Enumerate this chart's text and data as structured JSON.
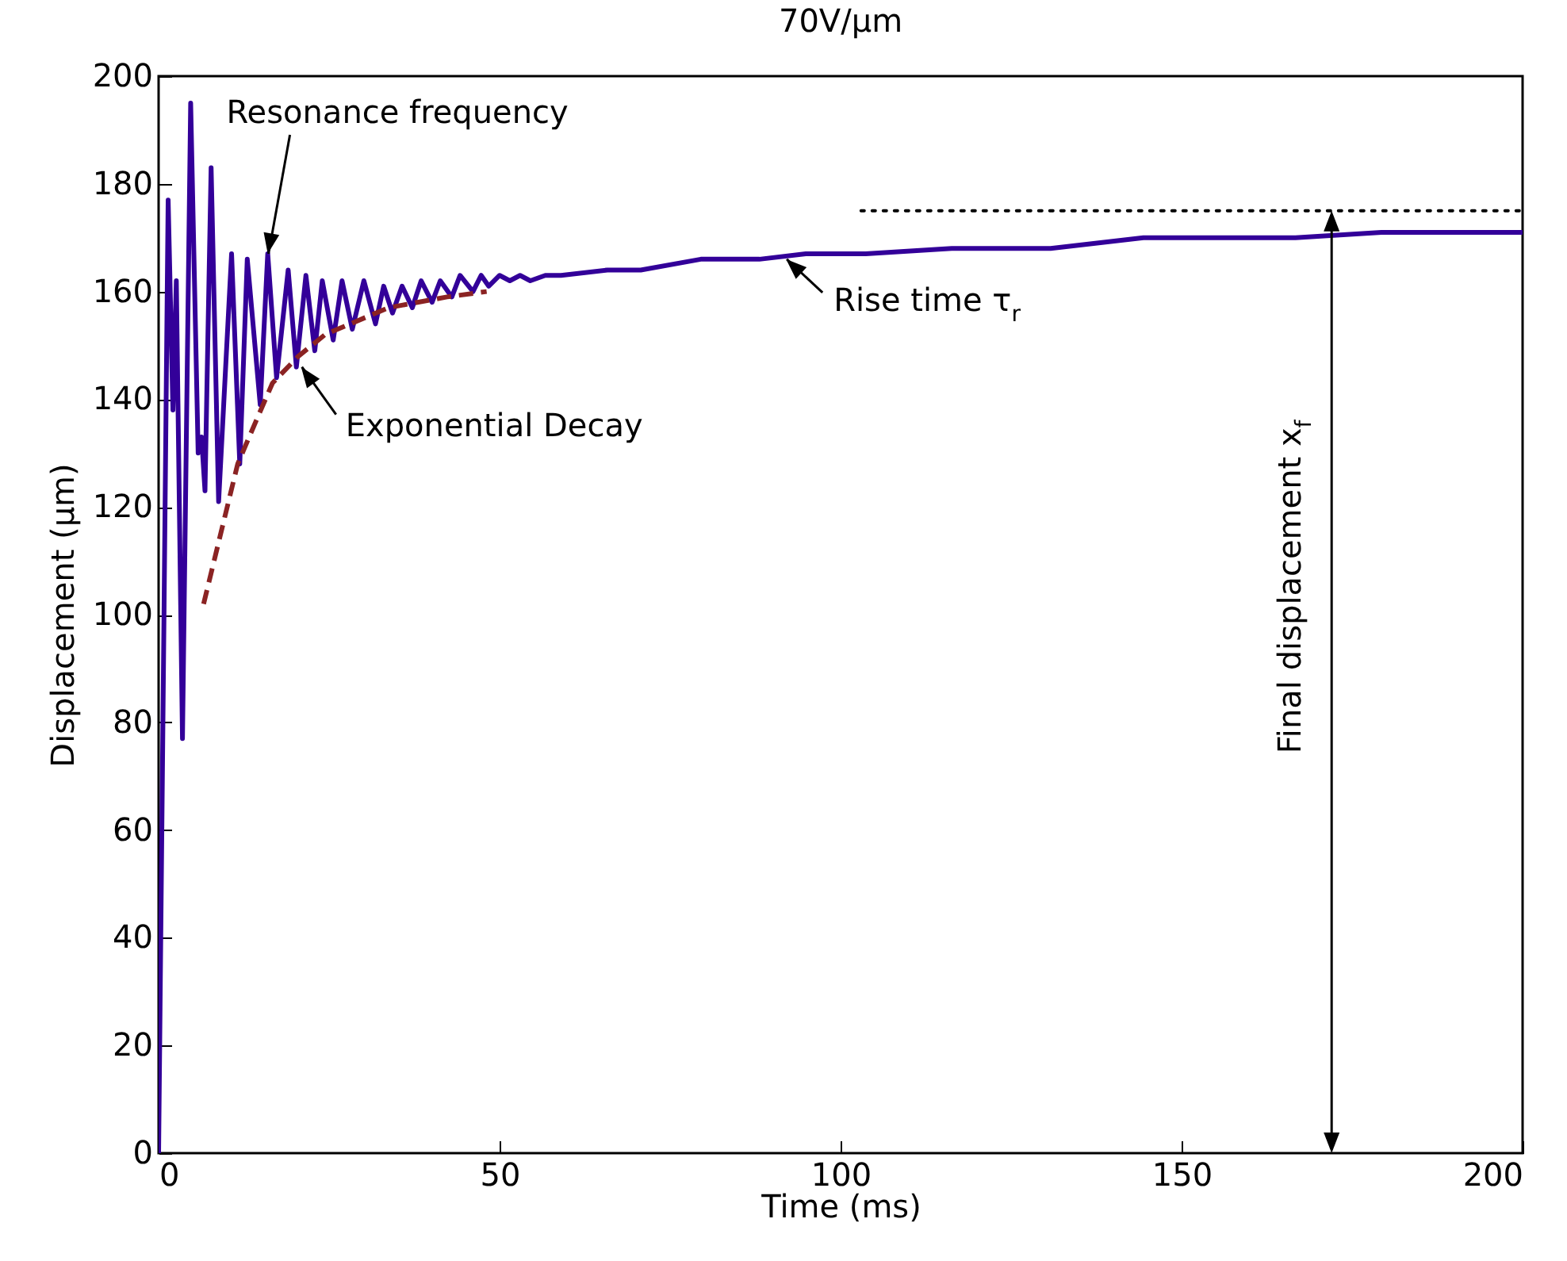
{
  "chart_data": {
    "type": "line",
    "title": "70V/µm",
    "xlabel": "Time (ms)",
    "ylabel": "Displacement (µm)",
    "xlim": [
      0,
      200
    ],
    "xticks": [
      0,
      50,
      100,
      150,
      200
    ],
    "ylim": [
      0,
      200
    ],
    "yticks": [
      0,
      20,
      40,
      60,
      80,
      100,
      120,
      140,
      160,
      180,
      200
    ],
    "grid": false,
    "ref_lines": [
      {
        "axis": "x",
        "value": 172,
        "label": "Final displacement x$_{f}$"
      }
    ],
    "series": [
      {
        "type": "line",
        "color": "#330099",
        "line_style": "solid",
        "x": [
          0,
          1.4,
          2.1,
          2.6,
          3.5,
          4.7,
          5.8,
          6.3,
          6.8,
          7.7,
          8.8,
          10.7,
          11.9,
          13.0,
          14.9,
          16.0,
          17.3,
          19.0,
          20.2,
          21.6,
          22.9,
          24.0,
          25.6,
          26.9,
          28.4,
          30.1,
          31.8,
          33.0,
          34.3,
          35.7,
          37.2,
          38.5,
          40.1,
          41.3,
          43.0,
          44.2,
          46.1,
          47.3,
          48.4,
          50,
          51.5,
          53,
          54.5,
          56.7,
          59,
          65.8,
          70.7,
          79.5,
          88.1,
          94.9,
          103.7,
          116.3,
          130.8,
          144.4,
          166.7,
          179.3,
          182.1,
          200
        ],
        "values": [
          0,
          177,
          138,
          162,
          77,
          195,
          130,
          133,
          123,
          183,
          121,
          167,
          128,
          166,
          139,
          167,
          144,
          164,
          146,
          163,
          149,
          162,
          151,
          162,
          153,
          162,
          154,
          161,
          156,
          161,
          157,
          162,
          158,
          162,
          159,
          163,
          160,
          163,
          161,
          163,
          162,
          163,
          162,
          163,
          163,
          164,
          164,
          166,
          166,
          167,
          167,
          168,
          168,
          170,
          170,
          171,
          171,
          171
        ]
      },
      {
        "type": "line",
        "color": "#8b2323",
        "line_style": "dashed",
        "x": [
          6.6,
          11.6,
          14.3,
          16.7,
          20.5,
          24.4,
          33.7,
          42.3,
          48.1
        ],
        "values": [
          102,
          128,
          136,
          143,
          148,
          152,
          157,
          159,
          160
        ]
      },
      {
        "type": "line",
        "color": "#000000",
        "line_style": "dotted",
        "x": [
          103,
          200
        ],
        "values": [
          175,
          175
        ]
      }
    ],
    "annotations": [
      {
        "text": "Resonance frequency",
        "x": 16,
        "y": 167
      },
      {
        "text": "Exponential Decay",
        "x": 20.9,
        "y": 146
      },
      {
        "text": "Rise time τ$_{r}$",
        "x": 92,
        "y": 166
      }
    ]
  }
}
